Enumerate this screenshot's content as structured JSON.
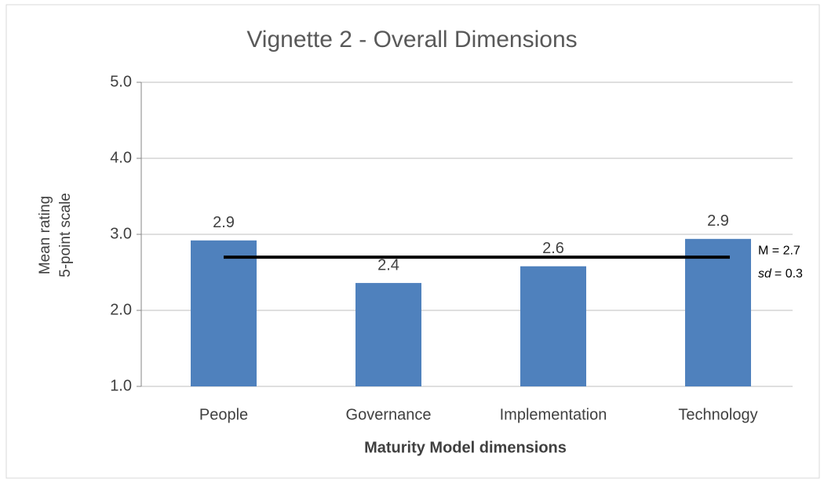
{
  "chart_data": {
    "type": "bar",
    "title": "Vignette 2 - Overall Dimensions",
    "x_label": "Maturity Model dimensions",
    "y_label": [
      "Mean rating",
      "5-point scale"
    ],
    "categories": [
      "People",
      "Governance",
      "Implementation",
      "Technology"
    ],
    "values": [
      2.92,
      2.36,
      2.58,
      2.94
    ],
    "value_labels": [
      "2.9",
      "2.4",
      "2.6",
      "2.9"
    ],
    "color": "#4f81bd",
    "ylim": [
      1,
      5
    ],
    "yticks": [
      {
        "value": 1,
        "label": "1.0"
      },
      {
        "value": 2,
        "label": "2.0"
      },
      {
        "value": 3,
        "label": "3.0"
      },
      {
        "value": 4,
        "label": "4.0"
      },
      {
        "value": 5,
        "label": "5.0"
      }
    ],
    "grid": true,
    "mean_line": {
      "value": 2.7,
      "label": "M = 2.7",
      "sd_name": "sd",
      "sd_text": "= 0.3"
    }
  }
}
